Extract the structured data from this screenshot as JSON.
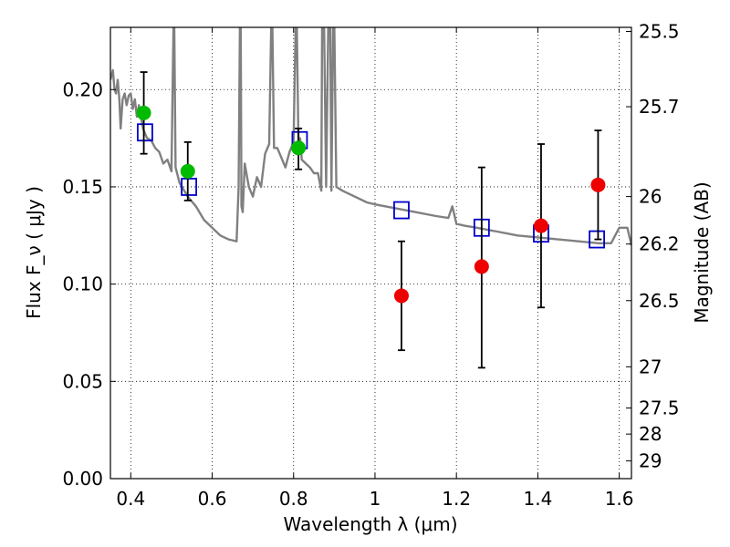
{
  "chart_data": {
    "type": "scatter",
    "title": "",
    "xlabel": "Wavelength  λ (μm)",
    "ylabel": "Flux  F_ν  ( μJy )",
    "ylabel_right": "Magnitude (AB)",
    "xlim": [
      0.35,
      1.63
    ],
    "ylim": [
      0.0,
      0.232
    ],
    "grid": true,
    "x_ticks": [
      {
        "value": 0.4,
        "label": "0.4"
      },
      {
        "value": 0.6,
        "label": "0.6"
      },
      {
        "value": 0.8,
        "label": "0.8"
      },
      {
        "value": 1.0,
        "label": "1"
      },
      {
        "value": 1.2,
        "label": "1.2"
      },
      {
        "value": 1.4,
        "label": "1.4"
      },
      {
        "value": 1.6,
        "label": "1.6"
      }
    ],
    "y_ticks": [
      {
        "value": 0.0,
        "label": "0.00"
      },
      {
        "value": 0.05,
        "label": "0.05"
      },
      {
        "value": 0.1,
        "label": "0.10"
      },
      {
        "value": 0.15,
        "label": "0.15"
      },
      {
        "value": 0.2,
        "label": "0.20"
      }
    ],
    "right_ticks": [
      {
        "label": "25.5",
        "flux": 0.2299
      },
      {
        "label": "25.7",
        "flux": 0.1912
      },
      {
        "label": "26",
        "flux": 0.145
      },
      {
        "label": "26.2",
        "flux": 0.1206
      },
      {
        "label": "26.5",
        "flux": 0.0915
      },
      {
        "label": "27",
        "flux": 0.0575
      },
      {
        "label": "27.5",
        "flux": 0.0363
      },
      {
        "label": "28",
        "flux": 0.0229
      },
      {
        "label": "29",
        "flux": 0.0091
      }
    ],
    "series": [
      {
        "kind": "line",
        "color": "#808080",
        "x": [
          0.35,
          0.356,
          0.36,
          0.364,
          0.368,
          0.372,
          0.375,
          0.38,
          0.385,
          0.39,
          0.395,
          0.4,
          0.405,
          0.41,
          0.415,
          0.42,
          0.43,
          0.44,
          0.45,
          0.46,
          0.47,
          0.48,
          0.49,
          0.5,
          0.505,
          0.507,
          0.51,
          0.52,
          0.54,
          0.56,
          0.58,
          0.6,
          0.62,
          0.64,
          0.66,
          0.665,
          0.668,
          0.67,
          0.672,
          0.675,
          0.68,
          0.69,
          0.7,
          0.71,
          0.72,
          0.73,
          0.74,
          0.745,
          0.748,
          0.752,
          0.76,
          0.78,
          0.79,
          0.8,
          0.805,
          0.808,
          0.812,
          0.816,
          0.82,
          0.83,
          0.84,
          0.85,
          0.86,
          0.868,
          0.87,
          0.875,
          0.88,
          0.885,
          0.89,
          0.893,
          0.897,
          0.9,
          0.905,
          0.92,
          0.95,
          0.98,
          1.0,
          1.05,
          1.1,
          1.15,
          1.18,
          1.19,
          1.2,
          1.22,
          1.25,
          1.3,
          1.35,
          1.4,
          1.45,
          1.5,
          1.55,
          1.58,
          1.6,
          1.61,
          1.62,
          1.63
        ],
        "y": [
          0.205,
          0.21,
          0.2,
          0.198,
          0.205,
          0.195,
          0.18,
          0.195,
          0.198,
          0.192,
          0.197,
          0.198,
          0.19,
          0.195,
          0.186,
          0.192,
          0.18,
          0.175,
          0.174,
          0.17,
          0.168,
          0.162,
          0.164,
          0.158,
          0.232,
          0.232,
          0.16,
          0.152,
          0.145,
          0.14,
          0.133,
          0.129,
          0.125,
          0.123,
          0.122,
          0.15,
          0.232,
          0.232,
          0.14,
          0.137,
          0.162,
          0.15,
          0.145,
          0.155,
          0.15,
          0.167,
          0.172,
          0.232,
          0.232,
          0.17,
          0.17,
          0.16,
          0.168,
          0.173,
          0.232,
          0.232,
          0.172,
          0.175,
          0.164,
          0.162,
          0.16,
          0.157,
          0.157,
          0.148,
          0.232,
          0.232,
          0.15,
          0.232,
          0.232,
          0.148,
          0.232,
          0.232,
          0.15,
          0.148,
          0.145,
          0.142,
          0.141,
          0.139,
          0.137,
          0.135,
          0.134,
          0.14,
          0.131,
          0.13,
          0.129,
          0.127,
          0.125,
          0.124,
          0.123,
          0.122,
          0.121,
          0.121,
          0.129,
          0.129,
          0.129,
          0.12
        ]
      },
      {
        "kind": "markers",
        "marker": "square-open",
        "color": "#0000cc",
        "x": [
          0.435,
          0.543,
          0.815,
          1.065,
          1.262,
          1.408,
          1.545
        ],
        "y": [
          0.178,
          0.15,
          0.174,
          0.138,
          0.129,
          0.126,
          0.123
        ]
      },
      {
        "kind": "markers",
        "marker": "circle",
        "color": "#00bb00",
        "x": [
          0.432,
          0.54,
          0.812
        ],
        "y": [
          0.188,
          0.158,
          0.17
        ],
        "err_low": [
          0.167,
          0.143,
          0.159
        ],
        "err_high": [
          0.209,
          0.173,
          0.18
        ]
      },
      {
        "kind": "markers",
        "marker": "circle",
        "color": "#ee0000",
        "x": [
          1.065,
          1.262,
          1.408,
          1.548
        ],
        "y": [
          0.094,
          0.109,
          0.13,
          0.151
        ],
        "err_low": [
          0.066,
          0.057,
          0.088,
          0.123
        ],
        "err_high": [
          0.122,
          0.16,
          0.172,
          0.179
        ]
      }
    ]
  }
}
